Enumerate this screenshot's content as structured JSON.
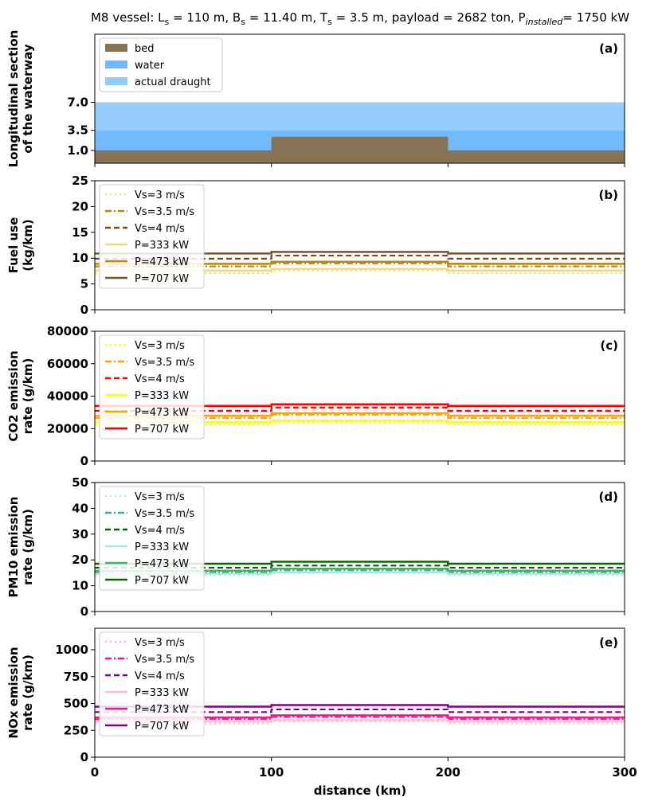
{
  "title": {
    "prefix": "M8 vessel: L",
    "sub1": "s",
    "part2": " = 110 m, B",
    "sub2": "s",
    "part3": " = 11.40 m, T",
    "sub3": "s",
    "part4": " = 3.5 m, payload = 2682 ton, P",
    "sub4": "installed",
    "part5": "= 1750 kW"
  },
  "xlabel": "distance (km)",
  "x_ticks": [
    0,
    100,
    200,
    300
  ],
  "x_tick_labels": [
    "0",
    "100",
    "200",
    "300"
  ],
  "chart_data": [
    {
      "type": "area",
      "panel": "(a)",
      "ylabel": [
        "Longitudinal section",
        "of the waterway"
      ],
      "xlim": [
        0,
        300
      ],
      "ylim": [
        -0.6,
        15.5
      ],
      "yticks": [
        1.0,
        3.5,
        7.0
      ],
      "ytick_labels": [
        "1.0",
        "3.5",
        "7.0"
      ],
      "legend": [
        "bed",
        "water",
        "actual draught"
      ],
      "colors": {
        "bed": "#857353",
        "water": "#73b9fd",
        "actual_draught": "#94ccfc"
      },
      "bed": {
        "x": [
          0,
          100,
          100,
          200,
          200,
          300
        ],
        "y": [
          1.0,
          1.0,
          2.7,
          2.7,
          1.0,
          1.0
        ]
      },
      "water_level": 3.5,
      "draught_level": 7.0
    },
    {
      "type": "line",
      "panel": "(b)",
      "ylabel": [
        "Fuel use",
        "(kg/km)"
      ],
      "xlim": [
        0,
        300
      ],
      "ylim": [
        0,
        25
      ],
      "yticks": [
        0,
        5,
        10,
        15,
        20,
        25
      ],
      "ytick_labels": [
        "0",
        "5",
        "10",
        "15",
        "20",
        "25"
      ],
      "segments": [
        0,
        100,
        200,
        300
      ],
      "series": [
        {
          "name": "Vs=3 m/s",
          "style": "dotted",
          "color": "#f0dc82",
          "values": [
            7.1,
            7.6,
            7.1
          ]
        },
        {
          "name": "Vs=3.5 m/s",
          "style": "dashdot",
          "color": "#b8860b",
          "values": [
            8.4,
            9.0,
            8.4
          ]
        },
        {
          "name": "Vs=4 m/s",
          "style": "dashed",
          "color": "#8b4513",
          "values": [
            9.9,
            10.5,
            9.9
          ]
        },
        {
          "name": "P=333 kW",
          "style": "solid",
          "color": "#f5d77e",
          "values": [
            7.6,
            7.9,
            7.6
          ]
        },
        {
          "name": "P=473 kW",
          "style": "solid",
          "color": "#b8860b",
          "values": [
            8.9,
            9.3,
            8.9
          ]
        },
        {
          "name": "P=707 kW",
          "style": "solid",
          "color": "#7b5326",
          "values": [
            10.9,
            11.2,
            10.9
          ]
        }
      ]
    },
    {
      "type": "line",
      "panel": "(c)",
      "ylabel": [
        "CO2 emission",
        "rate (g/km)"
      ],
      "xlim": [
        0,
        300
      ],
      "ylim": [
        0,
        80000
      ],
      "yticks": [
        0,
        20000,
        40000,
        60000,
        80000
      ],
      "ytick_labels": [
        "0",
        "20000",
        "40000",
        "60000",
        "80000"
      ],
      "segments": [
        0,
        100,
        200,
        300
      ],
      "series": [
        {
          "name": "Vs=3 m/s",
          "style": "dotted",
          "color": "#ffff00",
          "values": [
            22500,
            24000,
            22500
          ]
        },
        {
          "name": "Vs=3.5 m/s",
          "style": "dashdot",
          "color": "#ffa500",
          "values": [
            26500,
            28500,
            26500
          ]
        },
        {
          "name": "Vs=4 m/s",
          "style": "dashed",
          "color": "#ff0000",
          "values": [
            31000,
            33000,
            31000
          ]
        },
        {
          "name": "P=333 kW",
          "style": "solid",
          "color": "#ffff00",
          "values": [
            24000,
            25000,
            24000
          ]
        },
        {
          "name": "P=473 kW",
          "style": "solid",
          "color": "#ffa500",
          "values": [
            28000,
            29500,
            28000
          ]
        },
        {
          "name": "P=707 kW",
          "style": "solid",
          "color": "#ff0000",
          "values": [
            34000,
            35000,
            34000
          ]
        }
      ]
    },
    {
      "type": "line",
      "panel": "(d)",
      "ylabel": [
        "PM10 emission",
        "rate (g/km)"
      ],
      "xlim": [
        0,
        300
      ],
      "ylim": [
        0,
        50
      ],
      "yticks": [
        0,
        10,
        20,
        30,
        40,
        50
      ],
      "ytick_labels": [
        "0",
        "10",
        "20",
        "30",
        "40",
        "50"
      ],
      "segments": [
        0,
        100,
        200,
        300
      ],
      "series": [
        {
          "name": "Vs=3 m/s",
          "style": "dotted",
          "color": "#aff0ee",
          "values": [
            14.0,
            14.8,
            14.0
          ]
        },
        {
          "name": "Vs=3.5 m/s",
          "style": "dashdot",
          "color": "#3cb371",
          "values": [
            15.2,
            16.0,
            15.2
          ]
        },
        {
          "name": "Vs=4 m/s",
          "style": "dashed",
          "color": "#006400",
          "values": [
            17.0,
            17.8,
            17.0
          ]
        },
        {
          "name": "P=333 kW",
          "style": "solid",
          "color": "#aee6e6",
          "values": [
            14.6,
            15.2,
            14.6
          ]
        },
        {
          "name": "P=473 kW",
          "style": "solid",
          "color": "#3cb371",
          "values": [
            15.8,
            16.6,
            15.8
          ]
        },
        {
          "name": "P=707 kW",
          "style": "solid",
          "color": "#0b6400",
          "values": [
            18.5,
            19.3,
            18.5
          ]
        }
      ]
    },
    {
      "type": "line",
      "panel": "(e)",
      "ylabel": [
        "NOx emission",
        "rate (g/km)"
      ],
      "xlim": [
        0,
        300
      ],
      "ylim": [
        0,
        1200
      ],
      "yticks": [
        0,
        250,
        500,
        750,
        1000
      ],
      "ytick_labels": [
        "0",
        "250",
        "500",
        "750",
        "1000"
      ],
      "segments": [
        0,
        100,
        200,
        300
      ],
      "series": [
        {
          "name": "Vs=3 m/s",
          "style": "dotted",
          "color": "#ffb6c1",
          "values": [
            315,
            335,
            315
          ]
        },
        {
          "name": "Vs=3.5 m/s",
          "style": "dashdot",
          "color": "#ff1493",
          "values": [
            355,
            375,
            355
          ]
        },
        {
          "name": "Vs=4 m/s",
          "style": "dashed",
          "color": "#800080",
          "values": [
            420,
            445,
            420
          ]
        },
        {
          "name": "P=333 kW",
          "style": "solid",
          "color": "#ffc0cb",
          "values": [
            335,
            345,
            335
          ]
        },
        {
          "name": "P=473 kW",
          "style": "solid",
          "color": "#ff1493",
          "values": [
            370,
            390,
            370
          ]
        },
        {
          "name": "P=707 kW",
          "style": "solid",
          "color": "#800080",
          "values": [
            470,
            485,
            470
          ]
        }
      ]
    }
  ]
}
